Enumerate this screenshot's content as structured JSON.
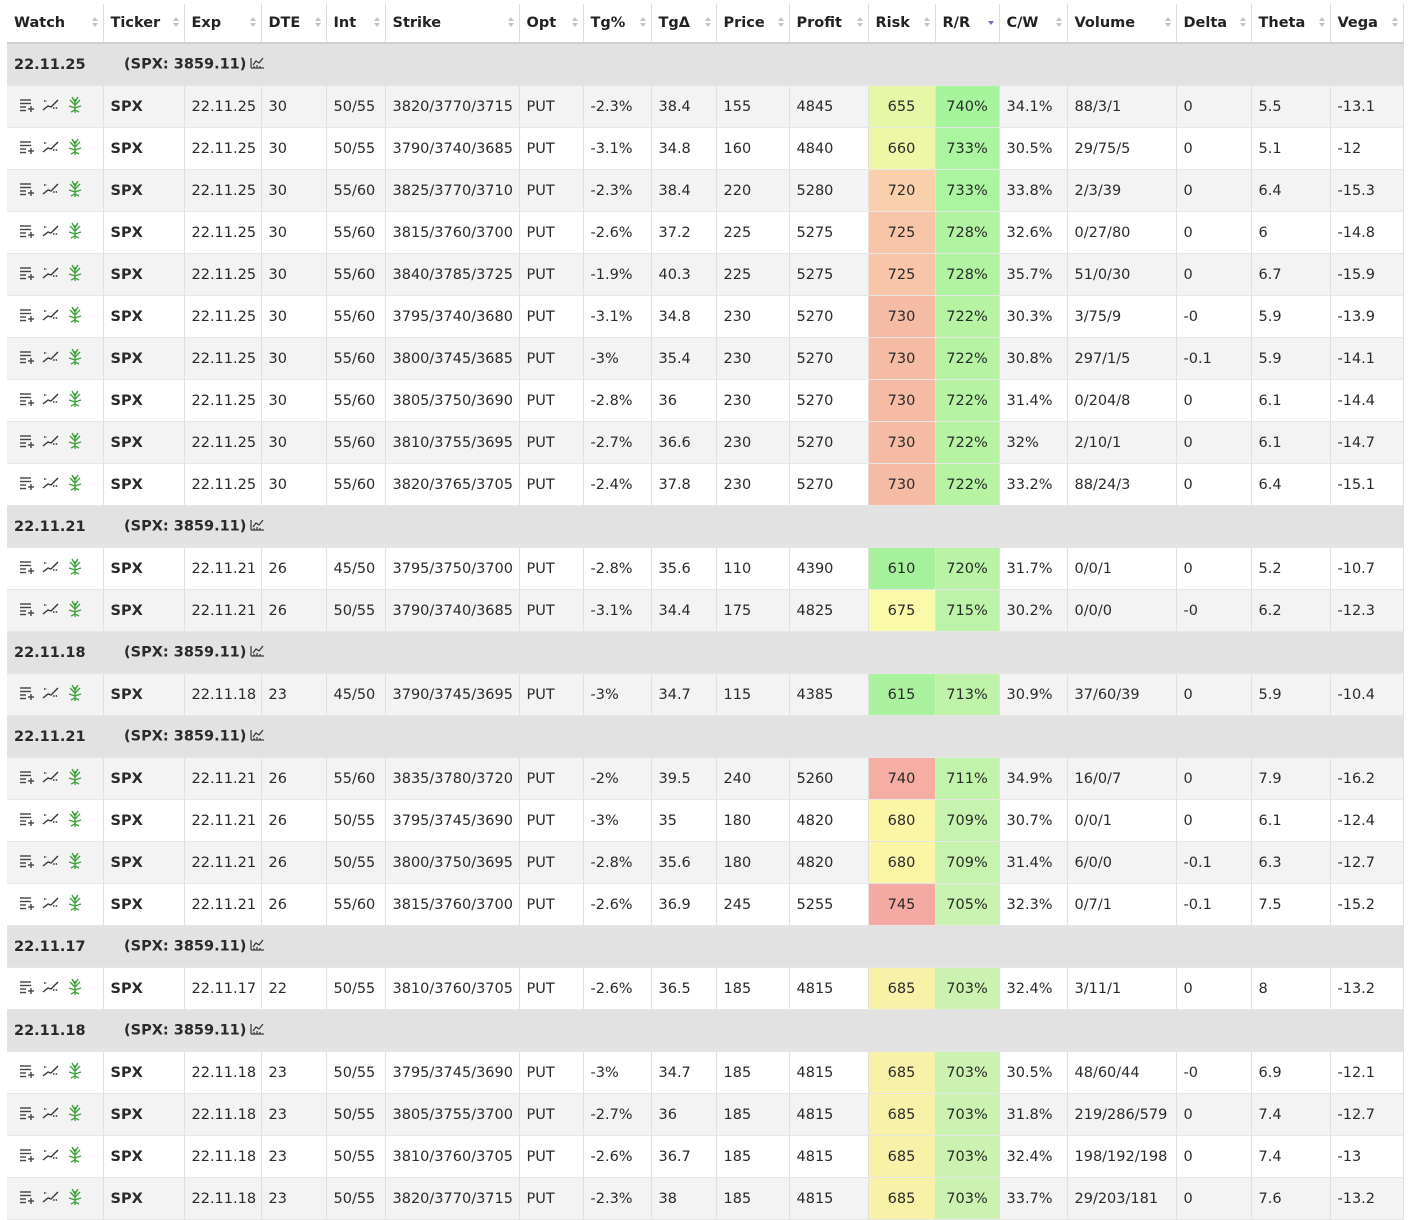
{
  "columns": [
    "Watch",
    "Ticker",
    "Exp",
    "DTE",
    "Int",
    "Strike",
    "Opt",
    "Tg%",
    "TgΔ",
    "Price",
    "Profit",
    "Risk",
    "R/R",
    "C/W",
    "Volume",
    "Delta",
    "Theta",
    "Vega"
  ],
  "sorted_column": "R/R",
  "colors": {
    "header_bg": "#ffffff",
    "group_bg": "#e2e2e2",
    "positive": "#2e8b2e",
    "negative": "#e02020",
    "rr_green": "#a8f59e"
  },
  "groups": [
    {
      "date": "22.11.25",
      "spx": "(SPX: 3859.11)",
      "rows": [
        {
          "ticker": "SPX",
          "exp": "22.11.25",
          "dte": "30",
          "int": "50/55",
          "strike": "3820/3770/3715",
          "opt": "PUT",
          "tgp": "-2.3%",
          "tgd": "38.4",
          "price": "155",
          "profit": "4845",
          "risk": "655",
          "rr": "740%",
          "cw": "34.1%",
          "volume": "88/3/1",
          "delta": "0",
          "theta": "5.5",
          "vega": "-13.1",
          "risk_color": "#e6f7a6",
          "rr_color": "#a6f59c"
        },
        {
          "ticker": "SPX",
          "exp": "22.11.25",
          "dte": "30",
          "int": "50/55",
          "strike": "3790/3740/3685",
          "opt": "PUT",
          "tgp": "-3.1%",
          "tgd": "34.8",
          "price": "160",
          "profit": "4840",
          "risk": "660",
          "rr": "733%",
          "cw": "30.5%",
          "volume": "29/75/5",
          "delta": "0",
          "theta": "5.1",
          "vega": "-12",
          "risk_color": "#edf7a6",
          "rr_color": "#acf5a0"
        },
        {
          "ticker": "SPX",
          "exp": "22.11.25",
          "dte": "30",
          "int": "55/60",
          "strike": "3825/3770/3710",
          "opt": "PUT",
          "tgp": "-2.3%",
          "tgd": "38.4",
          "price": "220",
          "profit": "5280",
          "risk": "720",
          "rr": "733%",
          "cw": "33.8%",
          "volume": "2/3/39",
          "delta": "0",
          "theta": "6.4",
          "vega": "-15.3",
          "risk_color": "#fad0ac",
          "rr_color": "#acf5a0"
        },
        {
          "ticker": "SPX",
          "exp": "22.11.25",
          "dte": "30",
          "int": "55/60",
          "strike": "3815/3760/3700",
          "opt": "PUT",
          "tgp": "-2.6%",
          "tgd": "37.2",
          "price": "225",
          "profit": "5275",
          "risk": "725",
          "rr": "728%",
          "cw": "32.6%",
          "volume": "0/27/80",
          "delta": "0",
          "theta": "6",
          "vega": "-14.8",
          "risk_color": "#f8c5a8",
          "rr_color": "#b0f4a2"
        },
        {
          "ticker": "SPX",
          "exp": "22.11.25",
          "dte": "30",
          "int": "55/60",
          "strike": "3840/3785/3725",
          "opt": "PUT",
          "tgp": "-1.9%",
          "tgd": "40.3",
          "price": "225",
          "profit": "5275",
          "risk": "725",
          "rr": "728%",
          "cw": "35.7%",
          "volume": "51/0/30",
          "delta": "0",
          "theta": "6.7",
          "vega": "-15.9",
          "risk_color": "#f8c5a8",
          "rr_color": "#b0f4a2"
        },
        {
          "ticker": "SPX",
          "exp": "22.11.25",
          "dte": "30",
          "int": "55/60",
          "strike": "3795/3740/3680",
          "opt": "PUT",
          "tgp": "-3.1%",
          "tgd": "34.8",
          "price": "230",
          "profit": "5270",
          "risk": "730",
          "rr": "722%",
          "cw": "30.3%",
          "volume": "3/75/9",
          "delta": "-0",
          "theta": "5.9",
          "vega": "-13.9",
          "risk_color": "#f6bba5",
          "rr_color": "#b6f4a4"
        },
        {
          "ticker": "SPX",
          "exp": "22.11.25",
          "dte": "30",
          "int": "55/60",
          "strike": "3800/3745/3685",
          "opt": "PUT",
          "tgp": "-3%",
          "tgd": "35.4",
          "price": "230",
          "profit": "5270",
          "risk": "730",
          "rr": "722%",
          "cw": "30.8%",
          "volume": "297/1/5",
          "delta": "-0.1",
          "theta": "5.9",
          "vega": "-14.1",
          "risk_color": "#f6bba5",
          "rr_color": "#b6f4a4"
        },
        {
          "ticker": "SPX",
          "exp": "22.11.25",
          "dte": "30",
          "int": "55/60",
          "strike": "3805/3750/3690",
          "opt": "PUT",
          "tgp": "-2.8%",
          "tgd": "36",
          "price": "230",
          "profit": "5270",
          "risk": "730",
          "rr": "722%",
          "cw": "31.4%",
          "volume": "0/204/8",
          "delta": "0",
          "theta": "6.1",
          "vega": "-14.4",
          "risk_color": "#f6bba5",
          "rr_color": "#b6f4a4"
        },
        {
          "ticker": "SPX",
          "exp": "22.11.25",
          "dte": "30",
          "int": "55/60",
          "strike": "3810/3755/3695",
          "opt": "PUT",
          "tgp": "-2.7%",
          "tgd": "36.6",
          "price": "230",
          "profit": "5270",
          "risk": "730",
          "rr": "722%",
          "cw": "32%",
          "volume": "2/10/1",
          "delta": "0",
          "theta": "6.1",
          "vega": "-14.7",
          "risk_color": "#f6bba5",
          "rr_color": "#b6f4a4"
        },
        {
          "ticker": "SPX",
          "exp": "22.11.25",
          "dte": "30",
          "int": "55/60",
          "strike": "3820/3765/3705",
          "opt": "PUT",
          "tgp": "-2.4%",
          "tgd": "37.8",
          "price": "230",
          "profit": "5270",
          "risk": "730",
          "rr": "722%",
          "cw": "33.2%",
          "volume": "88/24/3",
          "delta": "0",
          "theta": "6.4",
          "vega": "-15.1",
          "risk_color": "#f6bba5",
          "rr_color": "#b6f4a4"
        }
      ]
    },
    {
      "date": "22.11.21",
      "spx": "(SPX: 3859.11)",
      "rows": [
        {
          "ticker": "SPX",
          "exp": "22.11.21",
          "dte": "26",
          "int": "45/50",
          "strike": "3795/3750/3700",
          "opt": "PUT",
          "tgp": "-2.8%",
          "tgd": "35.6",
          "price": "110",
          "profit": "4390",
          "risk": "610",
          "rr": "720%",
          "cw": "31.7%",
          "volume": "0/0/1",
          "delta": "0",
          "theta": "5.2",
          "vega": "-10.7",
          "risk_color": "#a6f29c",
          "rr_color": "#b8f3a6"
        },
        {
          "ticker": "SPX",
          "exp": "22.11.21",
          "dte": "26",
          "int": "50/55",
          "strike": "3790/3740/3685",
          "opt": "PUT",
          "tgp": "-3.1%",
          "tgd": "34.4",
          "price": "175",
          "profit": "4825",
          "risk": "675",
          "rr": "715%",
          "cw": "30.2%",
          "volume": "0/0/0",
          "delta": "-0",
          "theta": "6.2",
          "vega": "-12.3",
          "risk_color": "#fbfaa8",
          "rr_color": "#bcf3a8"
        }
      ]
    },
    {
      "date": "22.11.18",
      "spx": "(SPX: 3859.11)",
      "rows": [
        {
          "ticker": "SPX",
          "exp": "22.11.18",
          "dte": "23",
          "int": "45/50",
          "strike": "3790/3745/3695",
          "opt": "PUT",
          "tgp": "-3%",
          "tgd": "34.7",
          "price": "115",
          "profit": "4385",
          "risk": "615",
          "rr": "713%",
          "cw": "30.9%",
          "volume": "37/60/39",
          "delta": "0",
          "theta": "5.9",
          "vega": "-10.4",
          "risk_color": "#abf29e",
          "rr_color": "#c0f3aa"
        }
      ]
    },
    {
      "date": "22.11.21",
      "spx": "(SPX: 3859.11)",
      "rows": [
        {
          "ticker": "SPX",
          "exp": "22.11.21",
          "dte": "26",
          "int": "55/60",
          "strike": "3835/3780/3720",
          "opt": "PUT",
          "tgp": "-2%",
          "tgd": "39.5",
          "price": "240",
          "profit": "5260",
          "risk": "740",
          "rr": "711%",
          "cw": "34.9%",
          "volume": "16/0/7",
          "delta": "0",
          "theta": "7.9",
          "vega": "-16.2",
          "risk_color": "#f6ada3",
          "rr_color": "#c2f3ab"
        },
        {
          "ticker": "SPX",
          "exp": "22.11.21",
          "dte": "26",
          "int": "50/55",
          "strike": "3795/3745/3690",
          "opt": "PUT",
          "tgp": "-3%",
          "tgd": "35",
          "price": "180",
          "profit": "4820",
          "risk": "680",
          "rr": "709%",
          "cw": "30.7%",
          "volume": "0/0/1",
          "delta": "0",
          "theta": "6.1",
          "vega": "-12.4",
          "risk_color": "#fbf6a6",
          "rr_color": "#c6f3ad"
        },
        {
          "ticker": "SPX",
          "exp": "22.11.21",
          "dte": "26",
          "int": "50/55",
          "strike": "3800/3750/3695",
          "opt": "PUT",
          "tgp": "-2.8%",
          "tgd": "35.6",
          "price": "180",
          "profit": "4820",
          "risk": "680",
          "rr": "709%",
          "cw": "31.4%",
          "volume": "6/0/0",
          "delta": "-0.1",
          "theta": "6.3",
          "vega": "-12.7",
          "risk_color": "#fbf6a6",
          "rr_color": "#c6f3ad"
        },
        {
          "ticker": "SPX",
          "exp": "22.11.21",
          "dte": "26",
          "int": "55/60",
          "strike": "3815/3760/3700",
          "opt": "PUT",
          "tgp": "-2.6%",
          "tgd": "36.9",
          "price": "245",
          "profit": "5255",
          "risk": "745",
          "rr": "705%",
          "cw": "32.3%",
          "volume": "0/7/1",
          "delta": "-0.1",
          "theta": "7.5",
          "vega": "-15.2",
          "risk_color": "#f4a9a2",
          "rr_color": "#caf2b0"
        }
      ]
    },
    {
      "date": "22.11.17",
      "spx": "(SPX: 3859.11)",
      "rows": [
        {
          "ticker": "SPX",
          "exp": "22.11.17",
          "dte": "22",
          "int": "50/55",
          "strike": "3810/3760/3705",
          "opt": "PUT",
          "tgp": "-2.6%",
          "tgd": "36.5",
          "price": "185",
          "profit": "4815",
          "risk": "685",
          "rr": "703%",
          "cw": "32.4%",
          "volume": "3/11/1",
          "delta": "0",
          "theta": "8",
          "vega": "-13.2",
          "risk_color": "#f8f1a8",
          "rr_color": "#ccf2b2"
        }
      ]
    },
    {
      "date": "22.11.18",
      "spx": "(SPX: 3859.11)",
      "rows": [
        {
          "ticker": "SPX",
          "exp": "22.11.18",
          "dte": "23",
          "int": "50/55",
          "strike": "3795/3745/3690",
          "opt": "PUT",
          "tgp": "-3%",
          "tgd": "34.7",
          "price": "185",
          "profit": "4815",
          "risk": "685",
          "rr": "703%",
          "cw": "30.5%",
          "volume": "48/60/44",
          "delta": "-0",
          "theta": "6.9",
          "vega": "-12.1",
          "risk_color": "#f8f1a8",
          "rr_color": "#ccf2b2"
        },
        {
          "ticker": "SPX",
          "exp": "22.11.18",
          "dte": "23",
          "int": "50/55",
          "strike": "3805/3755/3700",
          "opt": "PUT",
          "tgp": "-2.7%",
          "tgd": "36",
          "price": "185",
          "profit": "4815",
          "risk": "685",
          "rr": "703%",
          "cw": "31.8%",
          "volume": "219/286/579",
          "delta": "0",
          "theta": "7.4",
          "vega": "-12.7",
          "risk_color": "#f8f1a8",
          "rr_color": "#ccf2b2"
        },
        {
          "ticker": "SPX",
          "exp": "22.11.18",
          "dte": "23",
          "int": "50/55",
          "strike": "3810/3760/3705",
          "opt": "PUT",
          "tgp": "-2.6%",
          "tgd": "36.7",
          "price": "185",
          "profit": "4815",
          "risk": "685",
          "rr": "703%",
          "cw": "32.4%",
          "volume": "198/192/198",
          "delta": "0",
          "theta": "7.4",
          "vega": "-13",
          "risk_color": "#f8f1a8",
          "rr_color": "#ccf2b2"
        },
        {
          "ticker": "SPX",
          "exp": "22.11.18",
          "dte": "23",
          "int": "50/55",
          "strike": "3820/3770/3715",
          "opt": "PUT",
          "tgp": "-2.3%",
          "tgd": "38",
          "price": "185",
          "profit": "4815",
          "risk": "685",
          "rr": "703%",
          "cw": "33.7%",
          "volume": "29/203/181",
          "delta": "0",
          "theta": "7.6",
          "vega": "-13.2",
          "risk_color": "#f8f1a8",
          "rr_color": "#ccf2b2"
        }
      ]
    }
  ]
}
